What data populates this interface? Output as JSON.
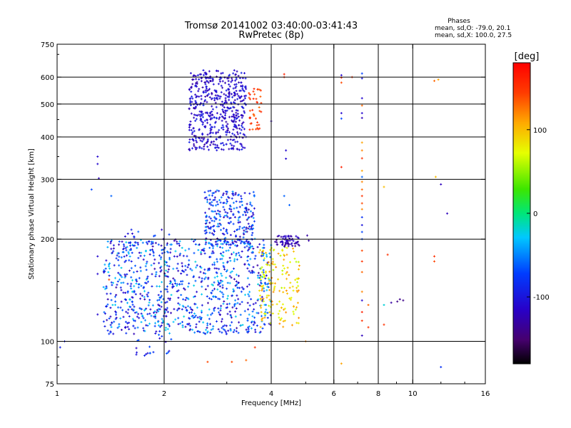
{
  "chart_data": {
    "type": "scatter",
    "title": "Tromsø 20141002 03:40:00-03:41:43",
    "subtitle": "RwPretec (8p)",
    "xlabel": "Frequency [MHz]",
    "ylabel": "Stationary phase Virtual Height [km]",
    "x_scale": "log",
    "y_scale": "log",
    "xlim": [
      1,
      16
    ],
    "ylim": [
      75,
      750
    ],
    "x_ticks": [
      1,
      2,
      4,
      6,
      8,
      10,
      16
    ],
    "x_tick_labels": [
      "1",
      "2",
      "4",
      "6",
      "8",
      "10",
      "16"
    ],
    "y_ticks": [
      75,
      100,
      200,
      300,
      400,
      500,
      600,
      750
    ],
    "y_tick_labels": [
      "75",
      "100",
      "200",
      "300",
      "400",
      "500",
      "600",
      "750"
    ],
    "x_gridlines": [
      2,
      4,
      6,
      8,
      10
    ],
    "y_gridlines": [
      100,
      200,
      300,
      400,
      500,
      600
    ],
    "grid": true,
    "phases": {
      "heading": "Phases",
      "line_o": "mean, sd,O: -79.0, 20.1",
      "line_x": "mean, sd,X: 100.0, 27.5"
    },
    "colorbar": {
      "label": "[deg]",
      "range": [
        -180,
        180
      ],
      "ticks": [
        100,
        0,
        -100
      ],
      "tick_labels": [
        "100",
        "0",
        "-100"
      ],
      "colormap": "rainbow"
    },
    "clusters": [
      {
        "x": [
          2.35,
          3.4
        ],
        "y": [
          365,
          630
        ],
        "phase": [
          -130,
          -90
        ],
        "count": 520
      },
      {
        "x": [
          3.45,
          3.75
        ],
        "y": [
          420,
          560
        ],
        "phase": [
          130,
          165
        ],
        "count": 40
      },
      {
        "x": [
          1.35,
          4.0
        ],
        "y": [
          105,
          200
        ],
        "phase": [
          -130,
          -20
        ],
        "count": 900
      },
      {
        "x": [
          2.6,
          3.6
        ],
        "y": [
          190,
          280
        ],
        "phase": [
          -130,
          -40
        ],
        "count": 260
      },
      {
        "x": [
          3.7,
          4.8
        ],
        "y": [
          110,
          190
        ],
        "phase": [
          60,
          120
        ],
        "count": 160
      },
      {
        "x": [
          4.1,
          4.8
        ],
        "y": [
          190,
          205
        ],
        "phase": [
          -140,
          -110
        ],
        "count": 60
      },
      {
        "x": [
          1.55,
          2.1
        ],
        "y": [
          90,
          215
        ],
        "phase": [
          -120,
          -60
        ],
        "count": 90
      }
    ],
    "points": [
      {
        "x": 1.02,
        "y": 96,
        "phase": -90
      },
      {
        "x": 1.05,
        "y": 100,
        "phase": -90
      },
      {
        "x": 1.3,
        "y": 350,
        "phase": -110
      },
      {
        "x": 1.3,
        "y": 333,
        "phase": -110
      },
      {
        "x": 1.31,
        "y": 302,
        "phase": -120
      },
      {
        "x": 1.25,
        "y": 280,
        "phase": -70
      },
      {
        "x": 1.42,
        "y": 268,
        "phase": -60
      },
      {
        "x": 1.3,
        "y": 178,
        "phase": -110
      },
      {
        "x": 1.4,
        "y": 152,
        "phase": 140
      },
      {
        "x": 1.3,
        "y": 120,
        "phase": -110
      },
      {
        "x": 1.3,
        "y": 158,
        "phase": -110
      },
      {
        "x": 4.35,
        "y": 612,
        "phase": 160
      },
      {
        "x": 4.35,
        "y": 600,
        "phase": 150
      },
      {
        "x": 4.0,
        "y": 445,
        "phase": -120
      },
      {
        "x": 4.4,
        "y": 365,
        "phase": -110
      },
      {
        "x": 4.4,
        "y": 345,
        "phase": -110
      },
      {
        "x": 4.35,
        "y": 268,
        "phase": -60
      },
      {
        "x": 4.5,
        "y": 252,
        "phase": -60
      },
      {
        "x": 6.3,
        "y": 608,
        "phase": -110
      },
      {
        "x": 6.3,
        "y": 598,
        "phase": 150
      },
      {
        "x": 6.3,
        "y": 578,
        "phase": 140
      },
      {
        "x": 6.3,
        "y": 470,
        "phase": -110
      },
      {
        "x": 6.3,
        "y": 453,
        "phase": -70
      },
      {
        "x": 6.3,
        "y": 326,
        "phase": 160
      },
      {
        "x": 6.3,
        "y": 86,
        "phase": 110
      },
      {
        "x": 6.75,
        "y": 600,
        "phase": 150
      },
      {
        "x": 7.2,
        "y": 615,
        "phase": -70
      },
      {
        "x": 7.2,
        "y": 595,
        "phase": -100
      },
      {
        "x": 7.2,
        "y": 520,
        "phase": -110
      },
      {
        "x": 7.2,
        "y": 495,
        "phase": 130
      },
      {
        "x": 7.2,
        "y": 470,
        "phase": -110
      },
      {
        "x": 7.2,
        "y": 455,
        "phase": -120
      },
      {
        "x": 7.2,
        "y": 385,
        "phase": 110
      },
      {
        "x": 7.2,
        "y": 365,
        "phase": 120
      },
      {
        "x": 7.2,
        "y": 346,
        "phase": 150
      },
      {
        "x": 7.2,
        "y": 318,
        "phase": 110
      },
      {
        "x": 7.2,
        "y": 305,
        "phase": -60
      },
      {
        "x": 7.2,
        "y": 295,
        "phase": 120
      },
      {
        "x": 7.2,
        "y": 280,
        "phase": 130
      },
      {
        "x": 7.2,
        "y": 268,
        "phase": 150
      },
      {
        "x": 7.2,
        "y": 255,
        "phase": 140
      },
      {
        "x": 7.2,
        "y": 245,
        "phase": 120
      },
      {
        "x": 7.2,
        "y": 232,
        "phase": -80
      },
      {
        "x": 7.2,
        "y": 220,
        "phase": -100
      },
      {
        "x": 7.2,
        "y": 210,
        "phase": -70
      },
      {
        "x": 7.2,
        "y": 200,
        "phase": -70
      },
      {
        "x": 7.2,
        "y": 185,
        "phase": 140
      },
      {
        "x": 7.2,
        "y": 172,
        "phase": 150
      },
      {
        "x": 7.2,
        "y": 160,
        "phase": 130
      },
      {
        "x": 7.2,
        "y": 140,
        "phase": 120
      },
      {
        "x": 7.2,
        "y": 132,
        "phase": -110
      },
      {
        "x": 7.2,
        "y": 122,
        "phase": 160
      },
      {
        "x": 7.2,
        "y": 115,
        "phase": 150
      },
      {
        "x": 7.2,
        "y": 104,
        "phase": -120
      },
      {
        "x": 7.5,
        "y": 128,
        "phase": 130
      },
      {
        "x": 7.5,
        "y": 110,
        "phase": 150
      },
      {
        "x": 8.3,
        "y": 285,
        "phase": 100
      },
      {
        "x": 8.5,
        "y": 180,
        "phase": 150
      },
      {
        "x": 8.3,
        "y": 128,
        "phase": -20
      },
      {
        "x": 8.3,
        "y": 112,
        "phase": 150
      },
      {
        "x": 8.7,
        "y": 130,
        "phase": -130
      },
      {
        "x": 9.05,
        "y": 131,
        "phase": -140
      },
      {
        "x": 9.4,
        "y": 132,
        "phase": -140
      },
      {
        "x": 9.2,
        "y": 133,
        "phase": -140
      },
      {
        "x": 11.5,
        "y": 585,
        "phase": 130
      },
      {
        "x": 11.8,
        "y": 590,
        "phase": 110
      },
      {
        "x": 11.6,
        "y": 305,
        "phase": 100
      },
      {
        "x": 11.5,
        "y": 178,
        "phase": 150
      },
      {
        "x": 11.5,
        "y": 172,
        "phase": 140
      },
      {
        "x": 12.0,
        "y": 290,
        "phase": -120
      },
      {
        "x": 12.5,
        "y": 238,
        "phase": -120
      },
      {
        "x": 12.0,
        "y": 84,
        "phase": -80
      },
      {
        "x": 5.05,
        "y": 205,
        "phase": -130
      },
      {
        "x": 5.1,
        "y": 198,
        "phase": -130
      },
      {
        "x": 3.1,
        "y": 87,
        "phase": 140
      },
      {
        "x": 2.65,
        "y": 87,
        "phase": 140
      },
      {
        "x": 3.4,
        "y": 88,
        "phase": 130
      },
      {
        "x": 3.6,
        "y": 96,
        "phase": 150
      },
      {
        "x": 5.0,
        "y": 100,
        "phase": 120
      }
    ]
  }
}
